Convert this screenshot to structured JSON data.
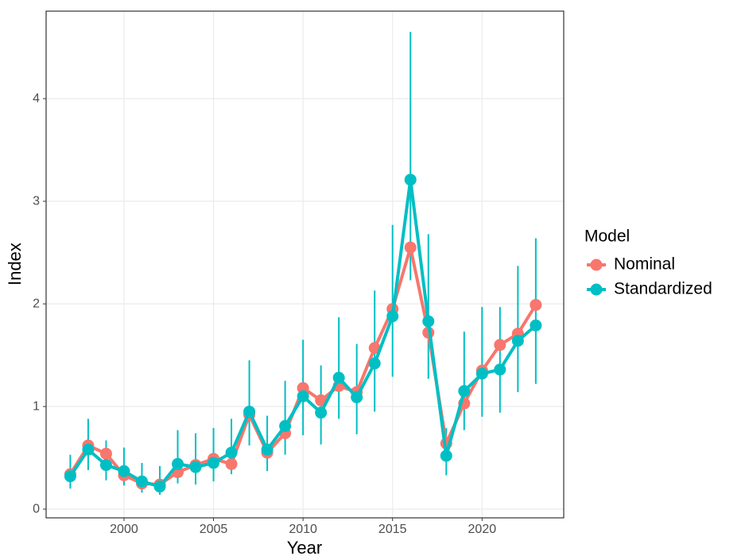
{
  "chart_data": {
    "type": "line",
    "x_label": "Year",
    "y_label": "Index",
    "legend_title": "Model",
    "x": [
      1997,
      1998,
      1999,
      2000,
      2001,
      2002,
      2003,
      2004,
      2005,
      2006,
      2007,
      2008,
      2009,
      2010,
      2011,
      2012,
      2013,
      2014,
      2015,
      2016,
      2017,
      2018,
      2019,
      2020,
      2021,
      2022,
      2023
    ],
    "series": [
      {
        "name": "Nominal",
        "color": "#F8766D",
        "values": [
          0.34,
          0.62,
          0.54,
          0.33,
          0.25,
          0.24,
          0.36,
          0.43,
          0.49,
          0.44,
          0.92,
          0.55,
          0.74,
          1.18,
          1.06,
          1.2,
          1.14,
          1.57,
          1.95,
          2.55,
          1.72,
          0.64,
          1.03,
          1.35,
          1.6,
          1.71,
          1.99
        ]
      },
      {
        "name": "Standardized",
        "color": "#00BFC4",
        "values": [
          0.32,
          0.58,
          0.43,
          0.37,
          0.27,
          0.22,
          0.44,
          0.41,
          0.45,
          0.55,
          0.95,
          0.58,
          0.81,
          1.1,
          0.94,
          1.28,
          1.09,
          1.42,
          1.88,
          3.21,
          1.83,
          0.52,
          1.15,
          1.32,
          1.36,
          1.64,
          1.79
        ],
        "lower": [
          0.2,
          0.38,
          0.28,
          0.23,
          0.16,
          0.14,
          0.25,
          0.24,
          0.27,
          0.34,
          0.62,
          0.37,
          0.53,
          0.72,
          0.63,
          0.88,
          0.73,
          0.95,
          1.29,
          2.23,
          1.27,
          0.33,
          0.77,
          0.9,
          0.94,
          1.14,
          1.22
        ],
        "upper": [
          0.53,
          0.88,
          0.67,
          0.6,
          0.45,
          0.42,
          0.77,
          0.74,
          0.79,
          0.88,
          1.45,
          0.91,
          1.25,
          1.65,
          1.4,
          1.87,
          1.61,
          2.13,
          2.77,
          4.65,
          2.68,
          0.79,
          1.73,
          1.97,
          1.97,
          2.37,
          2.64
        ]
      }
    ],
    "xlim": [
      1995.65,
      2024.56
    ],
    "xticks": [
      2000,
      2005,
      2010,
      2015,
      2020
    ],
    "ylim": [
      -0.085,
      4.853
    ],
    "yticks": [
      0,
      1,
      2,
      3,
      4
    ],
    "grid": true,
    "legend_position": "right"
  }
}
